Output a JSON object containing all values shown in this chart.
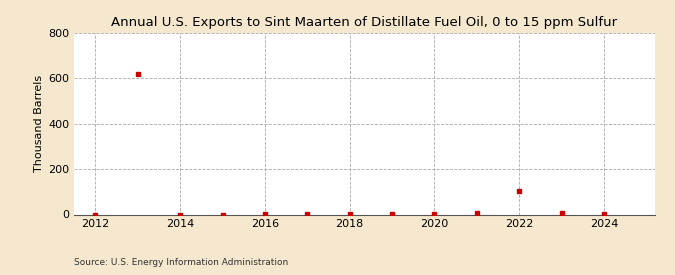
{
  "title": "Annual U.S. Exports to Sint Maarten of Distillate Fuel Oil, 0 to 15 ppm Sulfur",
  "ylabel": "Thousand Barrels",
  "source": "Source: U.S. Energy Information Administration",
  "background_color": "#f5e8ce",
  "plot_background": "#ffffff",
  "xlim": [
    2011.5,
    2025.2
  ],
  "ylim": [
    0,
    800
  ],
  "yticks": [
    0,
    200,
    400,
    600,
    800
  ],
  "xticks": [
    2012,
    2014,
    2016,
    2018,
    2020,
    2022,
    2024
  ],
  "years": [
    2012,
    2013,
    2014,
    2015,
    2016,
    2017,
    2018,
    2019,
    2020,
    2021,
    2022,
    2023,
    2024
  ],
  "values": [
    0,
    621,
    0,
    0,
    2,
    4,
    3,
    2,
    4,
    8,
    105,
    5,
    3
  ],
  "marker_color": "#cc0000",
  "marker_size": 3.5,
  "grid_color": "#aaaaaa",
  "grid_style": "--",
  "title_fontsize": 9.5,
  "tick_fontsize": 8,
  "ylabel_fontsize": 8
}
